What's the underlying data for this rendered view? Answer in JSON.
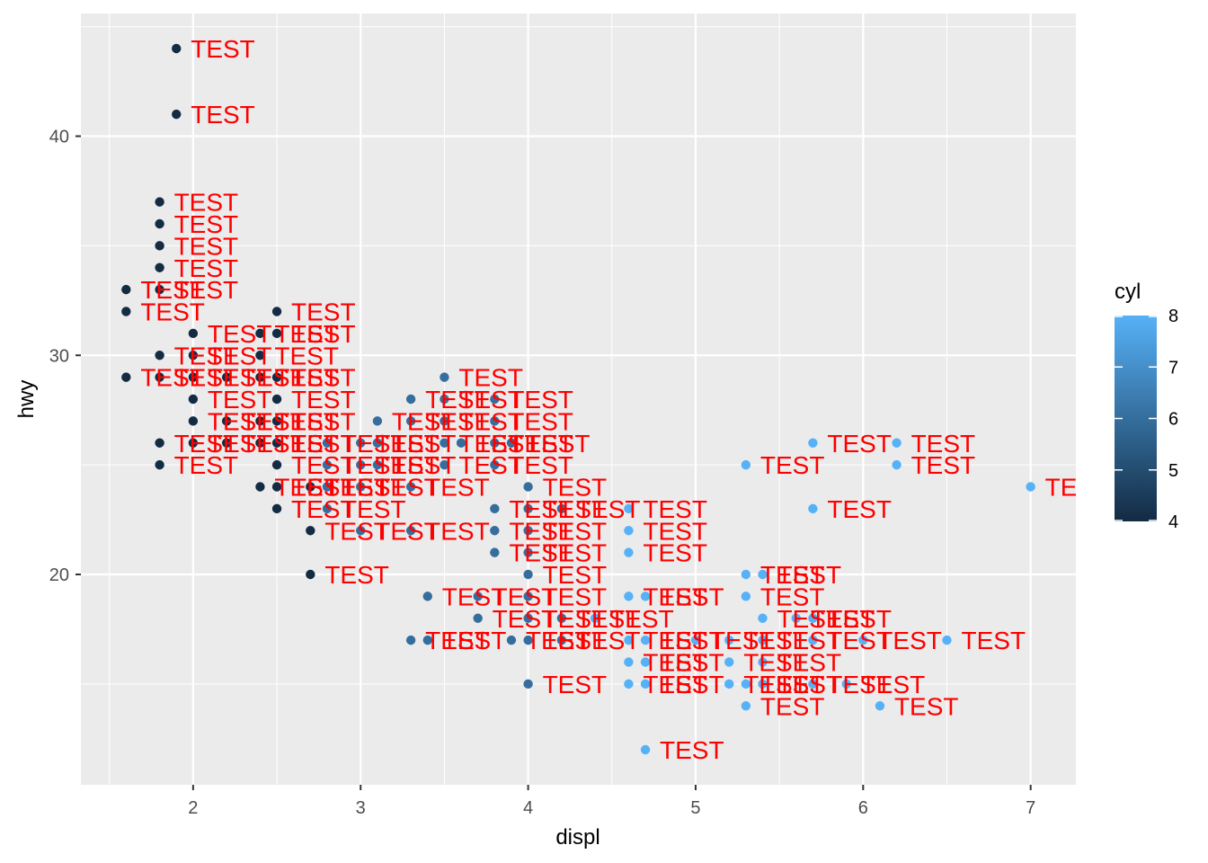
{
  "chart_data": {
    "type": "scatter",
    "xlabel": "displ",
    "ylabel": "hwy",
    "xlim": [
      1.33,
      7.27
    ],
    "ylim": [
      10.4,
      45.6
    ],
    "x_ticks": [
      2,
      3,
      4,
      5,
      6,
      7
    ],
    "y_ticks": [
      20,
      30,
      40
    ],
    "grid": true,
    "point_label": "TEST",
    "color_scale": {
      "title": "cyl",
      "min": 4,
      "max": 8,
      "ticks": [
        4,
        5,
        6,
        7,
        8
      ],
      "low_color": "#132B43",
      "high_color": "#56B1F7"
    },
    "label_color": "#FF0000",
    "panel_color": "#EBEBEB",
    "points": [
      [
        1.9,
        44,
        4
      ],
      [
        1.9,
        41,
        4
      ],
      [
        1.8,
        37,
        4
      ],
      [
        1.8,
        36,
        4
      ],
      [
        1.8,
        35,
        4
      ],
      [
        1.8,
        34,
        4
      ],
      [
        1.6,
        33,
        4
      ],
      [
        1.8,
        33,
        4
      ],
      [
        1.6,
        32,
        4
      ],
      [
        2.5,
        32,
        4
      ],
      [
        2.0,
        31,
        4
      ],
      [
        2.4,
        31,
        4
      ],
      [
        2.5,
        31,
        4
      ],
      [
        1.8,
        30,
        4
      ],
      [
        2.0,
        30,
        4
      ],
      [
        2.4,
        30,
        4
      ],
      [
        1.6,
        29,
        4
      ],
      [
        1.8,
        29,
        4
      ],
      [
        2.0,
        29,
        4
      ],
      [
        2.2,
        29,
        4
      ],
      [
        2.4,
        29,
        4
      ],
      [
        2.5,
        29,
        4
      ],
      [
        3.5,
        29,
        6
      ],
      [
        2.0,
        28,
        4
      ],
      [
        2.5,
        28,
        4
      ],
      [
        3.3,
        28,
        6
      ],
      [
        3.5,
        28,
        6
      ],
      [
        3.8,
        28,
        6
      ],
      [
        2.0,
        27,
        4
      ],
      [
        2.2,
        27,
        4
      ],
      [
        2.4,
        27,
        4
      ],
      [
        2.5,
        27,
        4
      ],
      [
        3.1,
        27,
        6
      ],
      [
        3.3,
        27,
        6
      ],
      [
        3.5,
        27,
        6
      ],
      [
        3.8,
        27,
        6
      ],
      [
        1.8,
        26,
        4
      ],
      [
        2.0,
        26,
        4
      ],
      [
        2.2,
        26,
        4
      ],
      [
        2.4,
        26,
        4
      ],
      [
        2.5,
        26,
        4
      ],
      [
        2.8,
        26,
        6
      ],
      [
        3.0,
        26,
        6
      ],
      [
        3.1,
        26,
        6
      ],
      [
        3.5,
        26,
        6
      ],
      [
        3.6,
        26,
        6
      ],
      [
        3.8,
        26,
        6
      ],
      [
        3.9,
        26,
        6
      ],
      [
        5.7,
        26,
        8
      ],
      [
        6.2,
        26,
        8
      ],
      [
        1.8,
        25,
        4
      ],
      [
        2.5,
        25,
        4
      ],
      [
        2.8,
        25,
        6
      ],
      [
        3.0,
        25,
        6
      ],
      [
        3.1,
        25,
        6
      ],
      [
        3.5,
        25,
        6
      ],
      [
        3.8,
        25,
        6
      ],
      [
        5.3,
        25,
        8
      ],
      [
        6.2,
        25,
        8
      ],
      [
        2.4,
        24,
        4
      ],
      [
        2.5,
        24,
        4
      ],
      [
        2.7,
        24,
        4
      ],
      [
        2.8,
        24,
        6
      ],
      [
        3.0,
        24,
        6
      ],
      [
        3.3,
        24,
        6
      ],
      [
        4.0,
        24,
        6
      ],
      [
        7.0,
        24,
        8
      ],
      [
        2.5,
        23,
        4
      ],
      [
        2.8,
        23,
        6
      ],
      [
        3.8,
        23,
        6
      ],
      [
        4.0,
        23,
        6
      ],
      [
        4.2,
        23,
        6
      ],
      [
        4.6,
        23,
        8
      ],
      [
        5.7,
        23,
        8
      ],
      [
        2.7,
        22,
        4
      ],
      [
        3.0,
        22,
        6
      ],
      [
        3.3,
        22,
        6
      ],
      [
        3.8,
        22,
        6
      ],
      [
        4.0,
        22,
        6
      ],
      [
        4.6,
        22,
        8
      ],
      [
        3.8,
        21,
        6
      ],
      [
        4.0,
        21,
        6
      ],
      [
        4.6,
        21,
        8
      ],
      [
        2.7,
        20,
        4
      ],
      [
        4.0,
        20,
        6
      ],
      [
        5.3,
        20,
        8
      ],
      [
        5.4,
        20,
        8
      ],
      [
        3.4,
        19,
        6
      ],
      [
        3.7,
        19,
        6
      ],
      [
        4.0,
        19,
        6
      ],
      [
        4.6,
        19,
        8
      ],
      [
        4.7,
        19,
        8
      ],
      [
        5.3,
        19,
        8
      ],
      [
        3.7,
        18,
        6
      ],
      [
        4.0,
        18,
        6
      ],
      [
        4.2,
        18,
        6
      ],
      [
        4.4,
        18,
        8
      ],
      [
        5.4,
        18,
        8
      ],
      [
        5.6,
        18,
        8
      ],
      [
        5.7,
        18,
        8
      ],
      [
        3.3,
        17,
        6
      ],
      [
        3.4,
        17,
        6
      ],
      [
        3.9,
        17,
        6
      ],
      [
        4.0,
        17,
        6
      ],
      [
        4.2,
        17,
        6
      ],
      [
        4.6,
        17,
        8
      ],
      [
        4.7,
        17,
        8
      ],
      [
        5.0,
        17,
        8
      ],
      [
        5.2,
        17,
        8
      ],
      [
        5.4,
        17,
        8
      ],
      [
        5.7,
        17,
        8
      ],
      [
        6.0,
        17,
        8
      ],
      [
        6.5,
        17,
        8
      ],
      [
        4.6,
        16,
        8
      ],
      [
        4.7,
        16,
        8
      ],
      [
        5.2,
        16,
        8
      ],
      [
        5.4,
        16,
        8
      ],
      [
        4.0,
        15,
        6
      ],
      [
        4.6,
        15,
        8
      ],
      [
        4.7,
        15,
        8
      ],
      [
        5.2,
        15,
        8
      ],
      [
        5.3,
        15,
        8
      ],
      [
        5.4,
        15,
        8
      ],
      [
        5.7,
        15,
        8
      ],
      [
        5.9,
        15,
        8
      ],
      [
        5.3,
        14,
        8
      ],
      [
        6.1,
        14,
        8
      ],
      [
        4.7,
        12,
        8
      ]
    ]
  }
}
